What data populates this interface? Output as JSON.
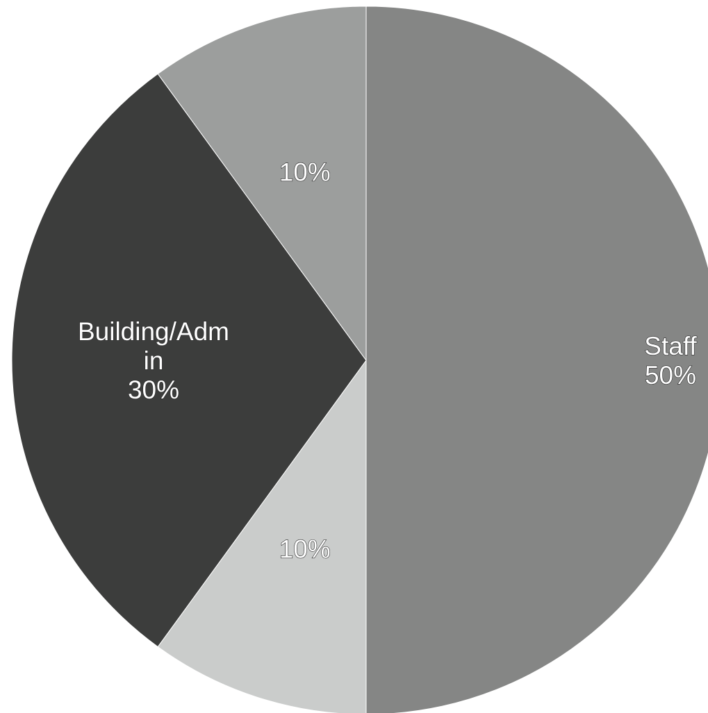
{
  "chart_data": {
    "type": "pie",
    "start": "12 o'clock",
    "direction": "clockwise",
    "slices": [
      {
        "label_lines": [
          "Staff",
          "50%"
        ],
        "value": 50,
        "color": "#858685"
      },
      {
        "label_lines": [
          "10%"
        ],
        "value": 10,
        "color": "#cacccb"
      },
      {
        "label_lines": [
          "Building/Adm",
          "in",
          "30%"
        ],
        "value": 30,
        "color": "#3c3d3c"
      },
      {
        "label_lines": [
          "10%"
        ],
        "value": 10,
        "color": "#9c9e9d"
      }
    ]
  }
}
